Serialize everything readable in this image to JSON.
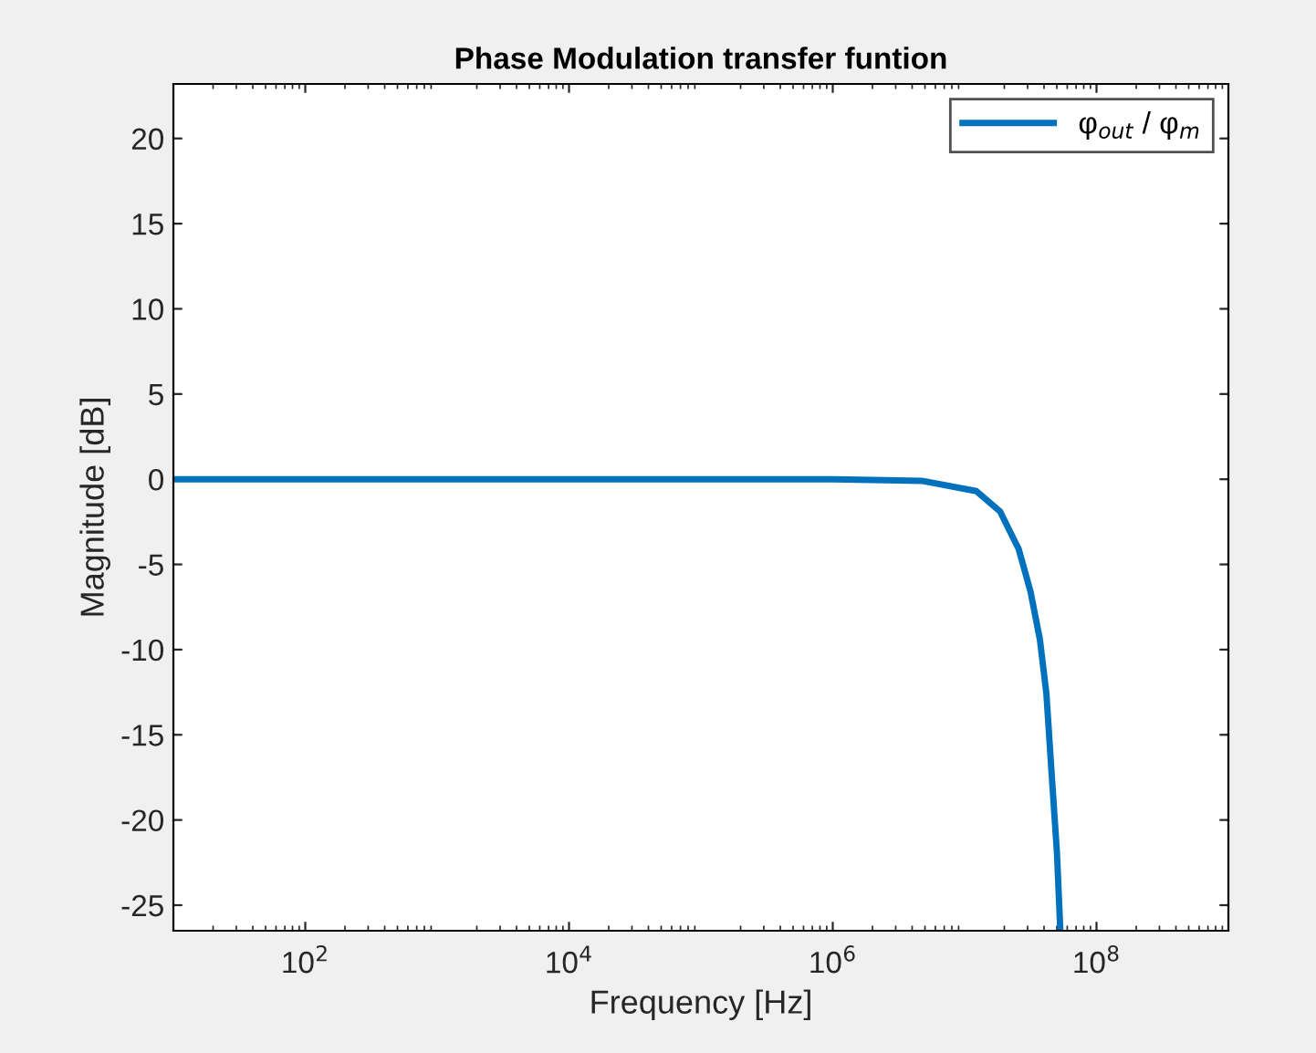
{
  "chart_data": {
    "type": "line",
    "title": "Phase Modulation transfer funtion",
    "xlabel": "Frequency [Hz]",
    "ylabel": "Magnitude [dB]",
    "log": "x",
    "xlim": [
      10,
      1000000000
    ],
    "ylim": [
      -26.5,
      23.2
    ],
    "xticks": [
      {
        "value": 100,
        "label": "10$^{2}$"
      },
      {
        "value": 10000,
        "label": "10$^{4}$"
      },
      {
        "value": 1000000,
        "label": "10$^{6}$"
      },
      {
        "value": 100000000,
        "label": "10$^{8}$"
      }
    ],
    "yticks": [
      -25,
      -20,
      -15,
      -10,
      -5,
      0,
      5,
      10,
      15,
      20
    ],
    "grid": false,
    "legend": "top right",
    "line_style": "solid",
    "marker": "none",
    "series": [
      {
        "name": "φ$_{out}$ / φ$_{m}$",
        "color": "#0072bd",
        "x": [
          10,
          1000000,
          4800000,
          12300000,
          18600000,
          25700000,
          31600000,
          37200000,
          41700000,
          45700000,
          50100000,
          53100000
        ],
        "values": [
          0,
          0,
          -0.1,
          -0.7,
          -1.9,
          -4.1,
          -6.6,
          -9.4,
          -12.6,
          -17.3,
          -21.9,
          -26.4
        ]
      }
    ]
  }
}
